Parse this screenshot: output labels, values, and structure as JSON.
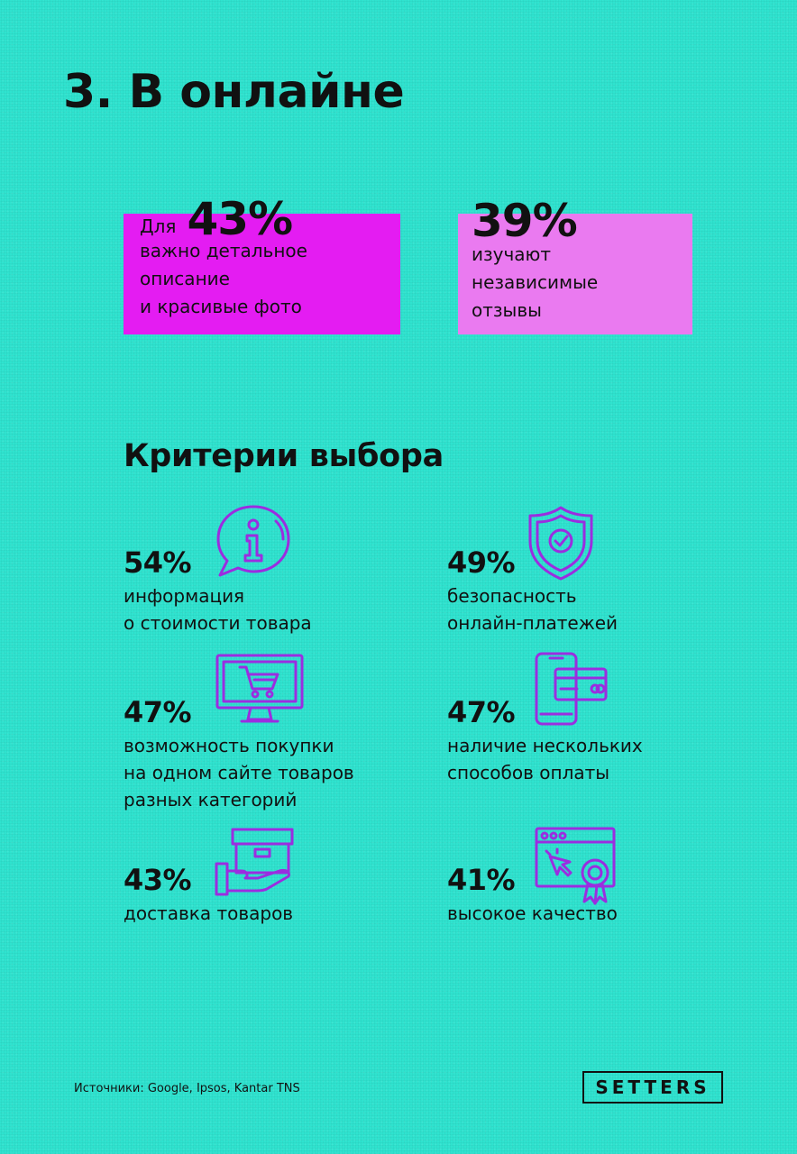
{
  "header": {
    "title": "3. В онлайне"
  },
  "stats": [
    {
      "prefix": "Для",
      "value": "43%",
      "lines": [
        "важно детальное",
        "описание",
        "и красивые фото"
      ],
      "color": "#e41cf2"
    },
    {
      "value": "39%",
      "lines": [
        "изучают",
        "независимые",
        "отзывы"
      ],
      "color": "#ea7af0"
    }
  ],
  "criteria": {
    "title": "Критерии выбора",
    "items": [
      {
        "value": "54%",
        "lines": [
          "информация",
          "о стоимости товара"
        ],
        "icon": "info-chat-icon"
      },
      {
        "value": "49%",
        "lines": [
          "безопасность",
          "онлайн-платежей"
        ],
        "icon": "shield-check-icon"
      },
      {
        "value": "47%",
        "lines": [
          "возможность покупки",
          "на одном сайте товаров",
          "разных категорий"
        ],
        "icon": "monitor-cart-icon"
      },
      {
        "value": "47%",
        "lines": [
          "наличие нескольких",
          "способов оплаты"
        ],
        "icon": "phone-card-icon"
      },
      {
        "value": "43%",
        "lines": [
          "доставка товаров"
        ],
        "icon": "hand-box-icon"
      },
      {
        "value": "41%",
        "lines": [
          "высокое качество"
        ],
        "icon": "browser-badge-icon"
      }
    ]
  },
  "icon_color": "#9b2de0",
  "footer": {
    "source": "Источники: Google, Ipsos, Kantar TNS",
    "logo": "SETTERS"
  }
}
